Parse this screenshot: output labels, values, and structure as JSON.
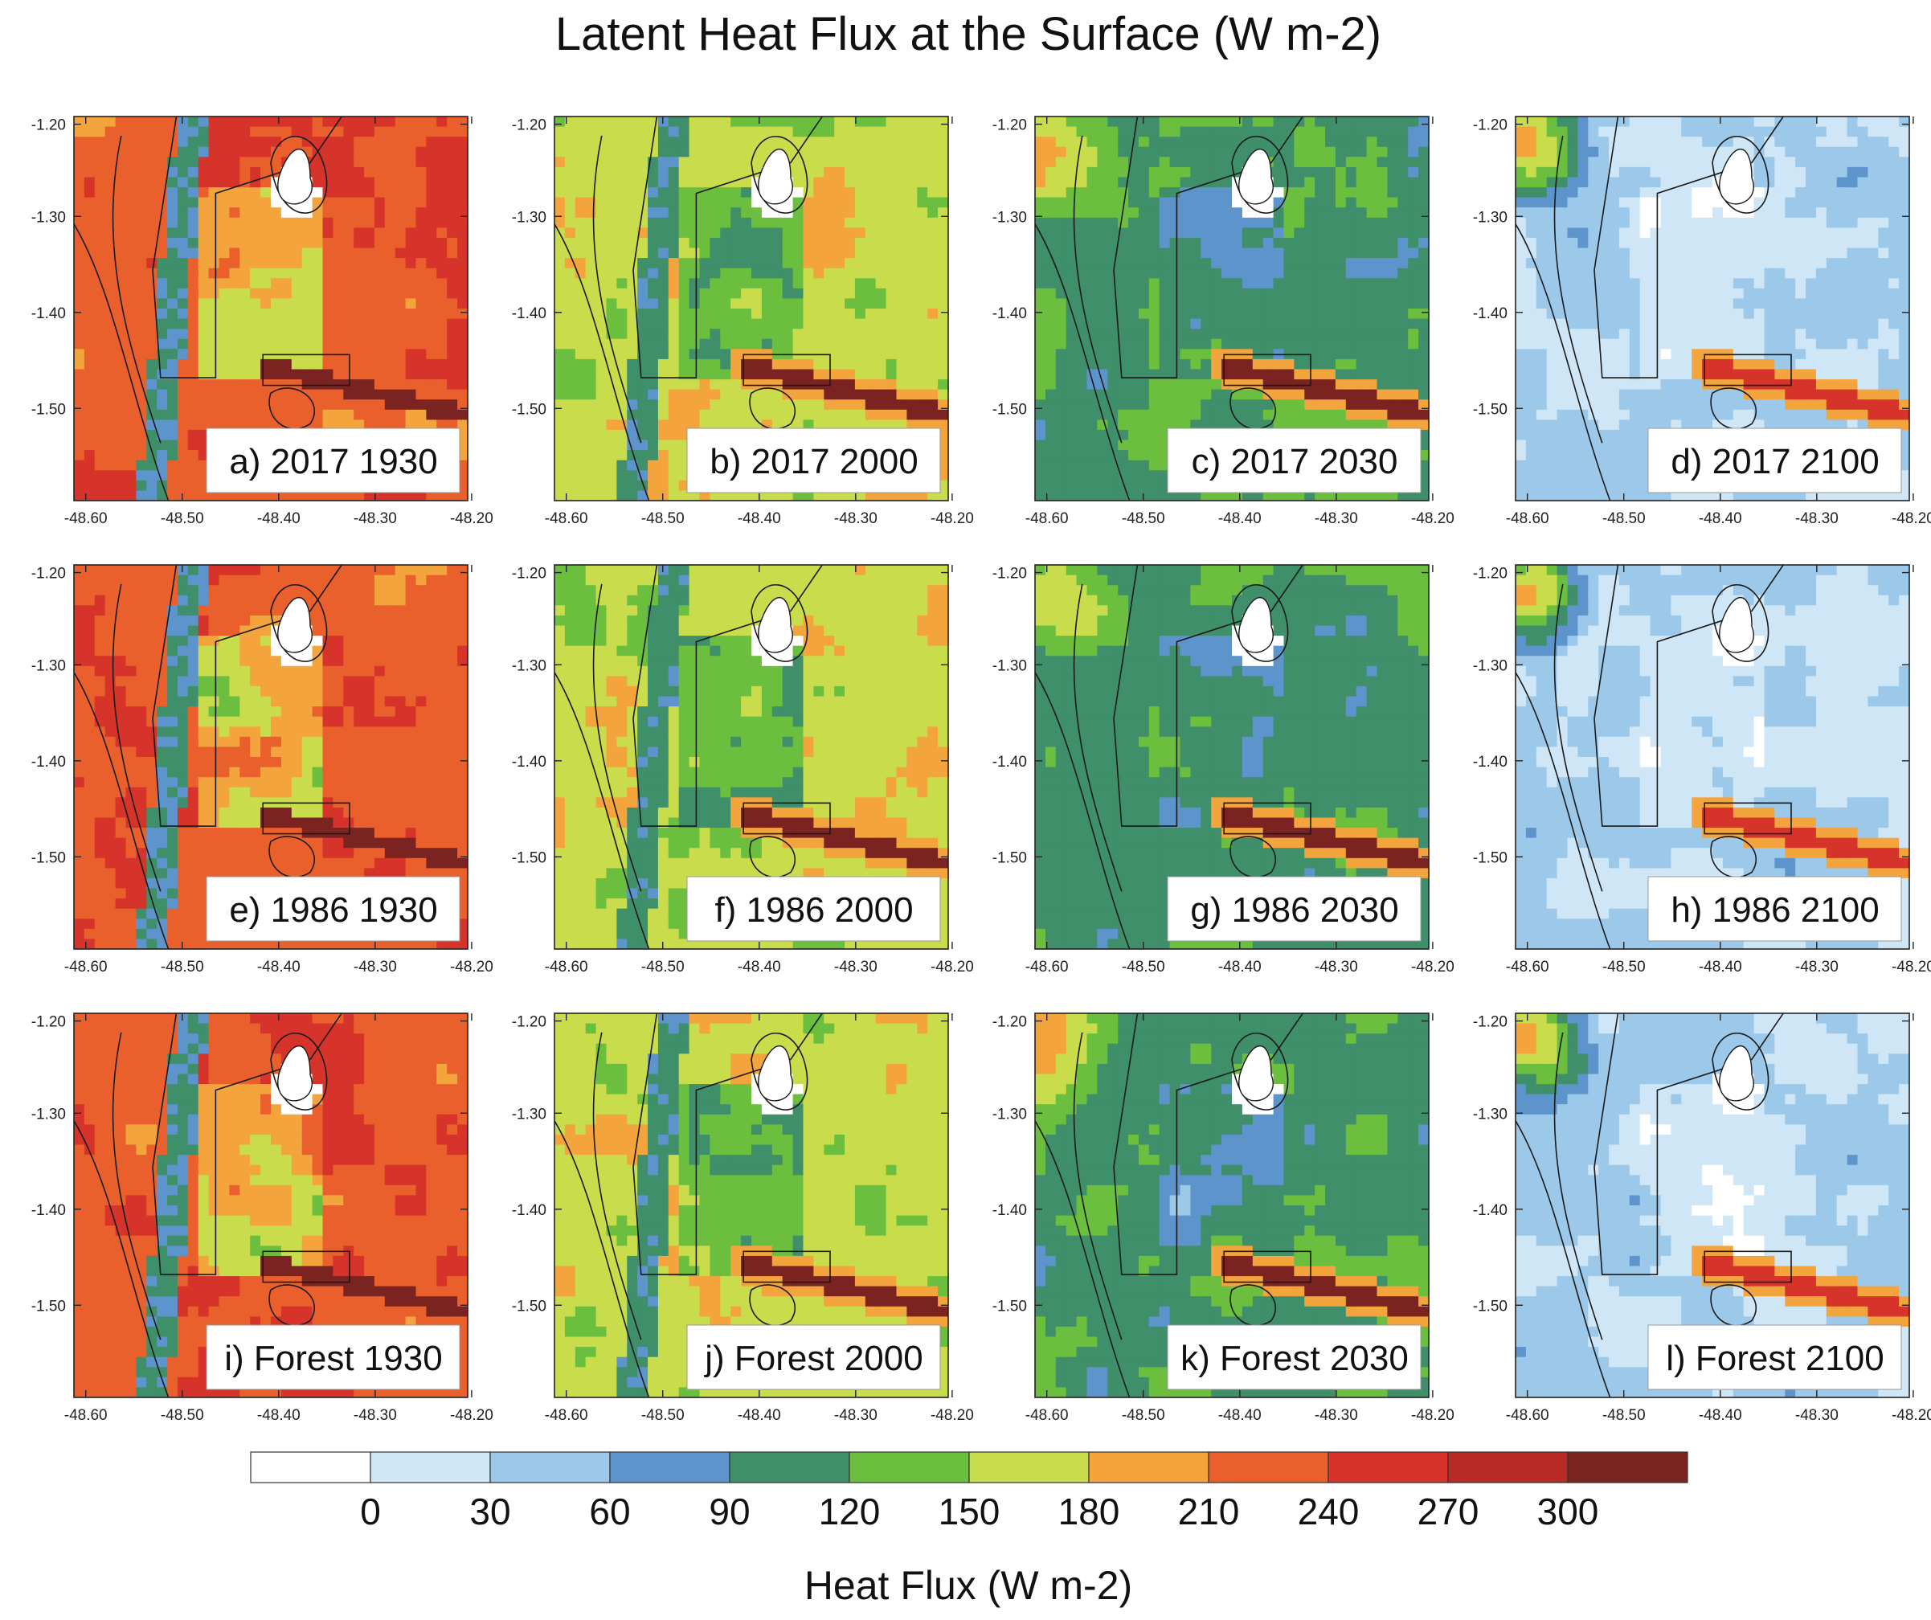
{
  "title": "Latent Heat Flux at the Surface (W m-2)",
  "colorbar_label": "Heat Flux (W m-2)",
  "lat_ticks": [
    "-1.20",
    "-1.30",
    "-1.40",
    "-1.50"
  ],
  "lon_ticks": [
    "-48.60",
    "-48.50",
    "-48.40",
    "-48.30",
    "-48.20"
  ],
  "colorbar_ticks": [
    "0",
    "30",
    "60",
    "90",
    "120",
    "150",
    "180",
    "210",
    "240",
    "270",
    "300"
  ],
  "palette": [
    "#ffffff",
    "#cfe6f6",
    "#9cc8ea",
    "#5d94cc",
    "#3e8f6a",
    "#6cbf3e",
    "#c9dc4c",
    "#f4a43c",
    "#e9602c",
    "#d6332a",
    "#b82a26",
    "#7a2320"
  ],
  "panels": [
    {
      "label": "a) 2017 1930",
      "regime": "hot"
    },
    {
      "label": "b) 2017 2000",
      "regime": "warm"
    },
    {
      "label": "c) 2017 2030",
      "regime": "cool"
    },
    {
      "label": "d) 2017 2100",
      "regime": "cold"
    },
    {
      "label": "e) 1986 1930",
      "regime": "hot"
    },
    {
      "label": "f) 1986 2000",
      "regime": "warm"
    },
    {
      "label": "g) 1986 2030",
      "regime": "cool"
    },
    {
      "label": "h) 1986 2100",
      "regime": "cold"
    },
    {
      "label": "i) Forest 1930",
      "regime": "hot"
    },
    {
      "label": "j) Forest 2000",
      "regime": "warm"
    },
    {
      "label": "k) Forest 2030",
      "regime": "cool"
    },
    {
      "label": "l) Forest 2100",
      "regime": "cold"
    }
  ]
}
